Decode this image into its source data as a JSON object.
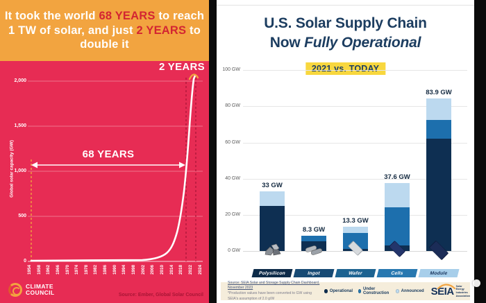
{
  "left_infographic": {
    "header": {
      "part1": "It took the world ",
      "part2": "68 YEARS",
      "part3": " to reach 1 TW of solar, and just ",
      "part4": "2 YEARS",
      "part5": " to double it"
    },
    "annotation_two_years": "2 YEARS",
    "annotation_68_years": "68 YEARS",
    "y_axis_title": "Global solar capacity (GW)",
    "y_ticks": [
      "2,000",
      "1,500",
      "1,000",
      "500",
      "0"
    ],
    "x_ticks": [
      "1954",
      "1958",
      "1962",
      "1966",
      "1970",
      "1974",
      "1978",
      "1982",
      "1986",
      "1990",
      "1994",
      "1998",
      "2002",
      "2006",
      "2010",
      "2014",
      "2018",
      "2022",
      "2024"
    ],
    "logo_line1": "CLIMATE",
    "logo_line2": "COUNCIL",
    "source": "Source: Ember, Global Solar Council",
    "colors": {
      "header_bg": "#F2A440",
      "accent_red": "#D32532",
      "chart_bg": "#E72C54",
      "line": "#FFFFFF"
    }
  },
  "right_infographic": {
    "title_line1": "U.S. Solar Supply Chain",
    "title_line2_normal": "Now ",
    "title_line2_italic": "Fully Operational",
    "badge": "2021 vs. TODAY",
    "y_ticks": [
      "100 GW",
      "80 GW",
      "60 GW",
      "40 GW",
      "20 GW",
      "0 GW"
    ],
    "bars": [
      {
        "label": "Polysilicon",
        "value": "33 GW",
        "badge_color": "#0D2B49",
        "badge_text_color": "#FFFFFF"
      },
      {
        "label": "Ingot",
        "value": "8.3 GW",
        "badge_color": "#174A74",
        "badge_text_color": "#FFFFFF"
      },
      {
        "label": "Wafer",
        "value": "13.3 GW",
        "badge_color": "#1D6391",
        "badge_text_color": "#FFFFFF"
      },
      {
        "label": "Cells",
        "value": "37.6 GW",
        "badge_color": "#2878B0",
        "badge_text_color": "#FFFFFF"
      },
      {
        "label": "Module",
        "value": "83.9 GW",
        "badge_color": "#A7CEEA",
        "badge_text_color": "#16325A"
      }
    ],
    "legend": [
      {
        "label": "Operational",
        "color": "#0E2F52"
      },
      {
        "label": "Under Construction",
        "color": "#2878B0"
      },
      {
        "label": "Announced",
        "color": "#BFDCF0"
      }
    ],
    "source_line1": "Source: SEIA Solar and Storage Supply Chain Dashboard, November 2023",
    "source_line2": "*Production values have been converted to GW using SEIA's assumption of 2.0 g/W",
    "logo_word": "SEIA",
    "logo_sub_line1": "Solar Energy",
    "logo_sub_line2": "Industries",
    "logo_sub_line3": "Association",
    "colors": {
      "navy": "#1C3D60",
      "badge_bg": "#F8D73E",
      "bar_dark": "#0E2F52",
      "bar_mid": "#1D6FAD",
      "bar_light": "#BCD9EF",
      "footer_bg": "#F5EDDB"
    }
  },
  "chart_data": [
    {
      "type": "line",
      "title": "It took the world 68 YEARS to reach 1 TW of solar, and just 2 YEARS to double it",
      "xlabel": "Year",
      "ylabel": "Global solar capacity (GW)",
      "x": [
        1954,
        1958,
        1962,
        1966,
        1970,
        1974,
        1978,
        1982,
        1986,
        1990,
        1994,
        1998,
        2002,
        2006,
        2010,
        2014,
        2018,
        2022,
        2024
      ],
      "values": [
        0,
        0,
        0,
        0,
        0,
        0,
        0,
        0,
        0,
        0,
        1,
        2,
        4,
        8,
        40,
        180,
        510,
        1180,
        2100
      ],
      "yticks": [
        0,
        500,
        1000,
        1500,
        2000
      ],
      "ylim": [
        0,
        2100
      ],
      "grid": true,
      "line_color": "#FFFFFF",
      "annotations": [
        "68 YEARS span: 1954 to ~2022 (1 TW reached)",
        "2 YEARS span: ~2022 to 2024 (2 TW reached)"
      ],
      "source": "Source: Ember, Global Solar Council"
    },
    {
      "type": "bar",
      "stacked": true,
      "title": "U.S. Solar Supply Chain Now Fully Operational",
      "subtitle": "2021 vs. TODAY",
      "categories": [
        "Polysilicon",
        "Ingot",
        "Wafer",
        "Cells",
        "Module"
      ],
      "series": [
        {
          "name": "Operational",
          "values": [
            25.0,
            5.3,
            1.3,
            3.0,
            62.0
          ]
        },
        {
          "name": "Under Construction",
          "values": [
            0.0,
            3.0,
            8.7,
            21.0,
            10.0
          ]
        },
        {
          "name": "Announced",
          "values": [
            8.0,
            0.0,
            3.3,
            13.6,
            11.9
          ]
        }
      ],
      "totals": [
        33,
        8.3,
        13.3,
        37.6,
        83.9
      ],
      "total_labels": [
        "33 GW",
        "8.3 GW",
        "13.3 GW",
        "37.6 GW",
        "83.9 GW"
      ],
      "ylabel": "GW",
      "ylim": [
        0,
        100
      ],
      "yticks": [
        0,
        20,
        40,
        60,
        80,
        100
      ],
      "grid": true,
      "legend_position": "bottom"
    }
  ]
}
